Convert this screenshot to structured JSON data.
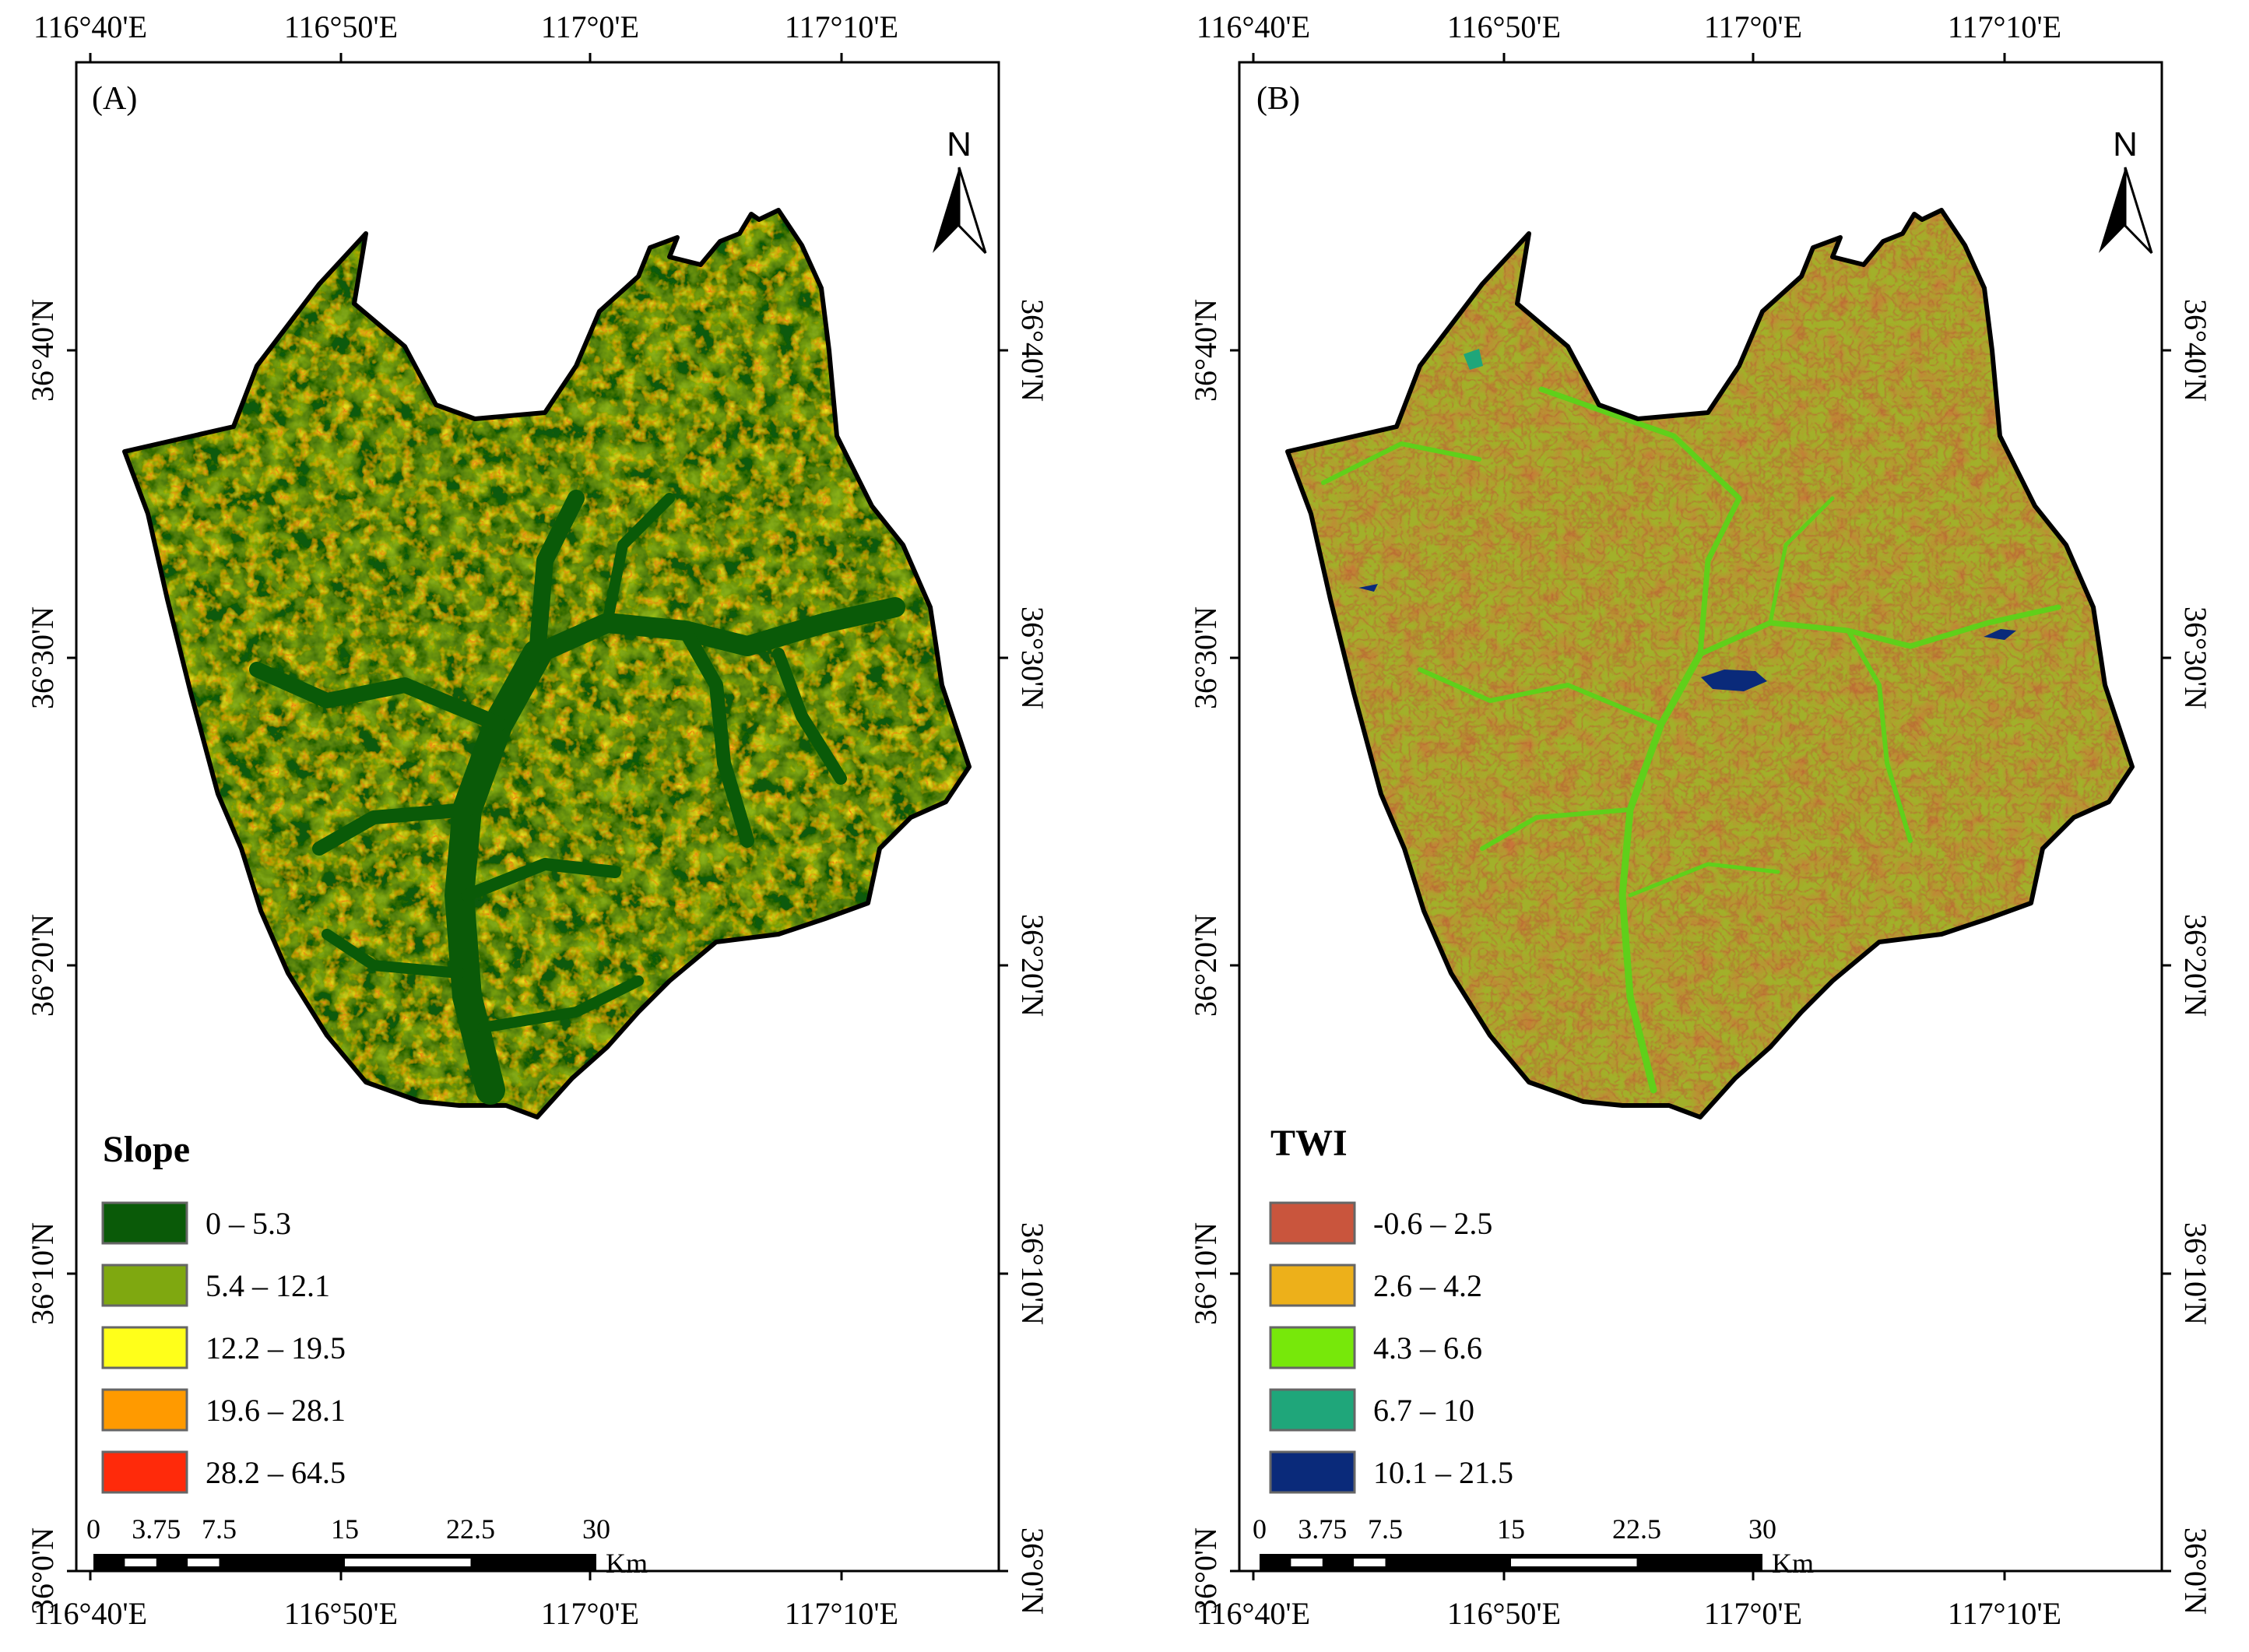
{
  "panels": [
    {
      "id": "A",
      "label": "(A)",
      "legend": {
        "title": "Slope",
        "classes": [
          {
            "label": "0 – 5.3",
            "color": "#0a5a08"
          },
          {
            "label": "5.4 – 12.1",
            "color": "#7fa810"
          },
          {
            "label": "12.2 – 19.5",
            "color": "#ffff1a"
          },
          {
            "label": "19.6 – 28.1",
            "color": "#ff9a00"
          },
          {
            "label": "28.2 – 64.5",
            "color": "#ff2a0a"
          }
        ]
      },
      "map_fill": {
        "base": "#0a5a08",
        "mid": "#9cc21a",
        "high": "#f2e21e",
        "peak": "#f0480f"
      }
    },
    {
      "id": "B",
      "label": "(B)",
      "legend": {
        "title": "TWI",
        "classes": [
          {
            "label": "-0.6 – 2.5",
            "color": "#c9553d"
          },
          {
            "label": "2.6 – 4.2",
            "color": "#edb01a"
          },
          {
            "label": "4.3 – 6.6",
            "color": "#77e80a"
          },
          {
            "label": "6.7 – 10",
            "color": "#1fa67a"
          },
          {
            "label": "10.1 – 21.5",
            "color": "#0a2a7a"
          }
        ]
      },
      "map_fill": {
        "base": "#a2b02a",
        "mid": "#c8743a",
        "high": "#b85a35",
        "peak": "#0a2a7a"
      }
    }
  ],
  "lon_ticks": [
    "116°40'E",
    "116°50'E",
    "117°0'E",
    "117°10'E"
  ],
  "lat_ticks": [
    "36°40'N",
    "36°30'N",
    "36°20'N",
    "36°10'N",
    "36°0'N"
  ],
  "north_label": "N",
  "scale_bar": {
    "ticks": [
      "0",
      "3.75",
      "7.5",
      "15",
      "22.5",
      "30"
    ],
    "unit": "Km"
  }
}
